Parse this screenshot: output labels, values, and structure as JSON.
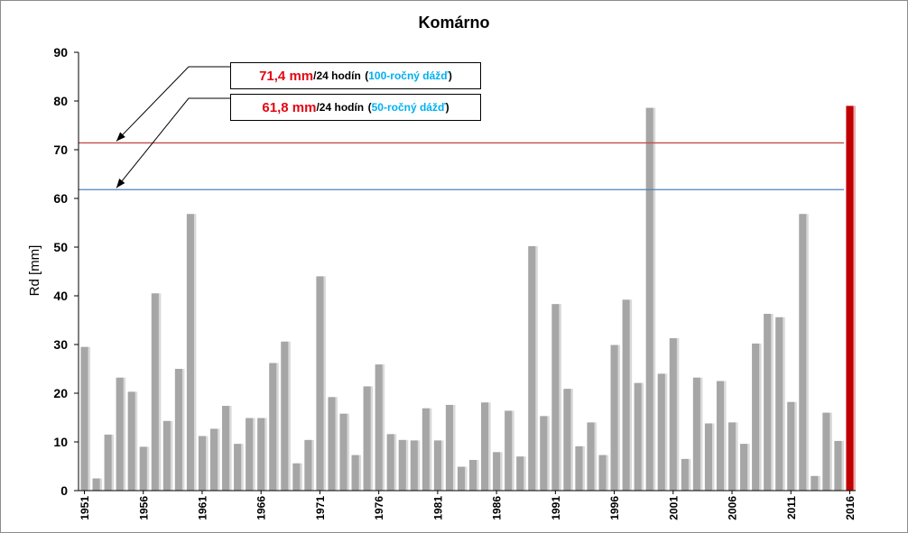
{
  "chart_data": {
    "type": "bar",
    "title": "Komárno",
    "ylabel": "Rd [mm]",
    "xlabel": "",
    "ylim": [
      0,
      90
    ],
    "yticks": [
      0,
      10,
      20,
      30,
      40,
      50,
      60,
      70,
      80,
      90
    ],
    "x_tick_labels": [
      "1951",
      "1956",
      "1961",
      "1966",
      "1971",
      "1976",
      "1981",
      "1986",
      "1991",
      "1996",
      "2001",
      "2006",
      "2011",
      "2016"
    ],
    "grid": false,
    "years": [
      1951,
      1952,
      1953,
      1954,
      1955,
      1956,
      1957,
      1958,
      1959,
      1960,
      1961,
      1962,
      1963,
      1964,
      1965,
      1966,
      1967,
      1968,
      1969,
      1970,
      1971,
      1972,
      1973,
      1974,
      1975,
      1976,
      1977,
      1978,
      1979,
      1980,
      1981,
      1982,
      1983,
      1984,
      1985,
      1986,
      1987,
      1988,
      1989,
      1990,
      1991,
      1992,
      1993,
      1994,
      1995,
      1996,
      1997,
      1998,
      1999,
      2000,
      2001,
      2002,
      2003,
      2004,
      2005,
      2006,
      2007,
      2008,
      2009,
      2010,
      2011,
      2012,
      2013,
      2014,
      2015,
      2016
    ],
    "values": [
      29.5,
      2.5,
      11.5,
      23.2,
      20.3,
      9.0,
      40.5,
      14.3,
      25.0,
      56.8,
      11.2,
      12.7,
      17.4,
      9.6,
      14.9,
      14.9,
      26.2,
      30.6,
      5.6,
      10.4,
      44.0,
      19.2,
      15.8,
      7.3,
      21.4,
      25.9,
      11.6,
      10.4,
      10.3,
      16.9,
      10.3,
      17.6,
      4.9,
      6.3,
      18.1,
      7.9,
      16.4,
      7.0,
      50.2,
      15.3,
      38.3,
      20.9,
      9.1,
      14.0,
      7.3,
      29.9,
      39.2,
      22.1,
      78.6,
      24.0,
      31.3,
      6.5,
      23.2,
      13.8,
      22.5,
      14.0,
      9.6,
      30.2,
      36.3,
      35.6,
      18.2,
      56.8,
      3.0,
      16.0,
      10.2,
      79.0
    ],
    "highlight": {
      "year": 2016,
      "value": 79.0,
      "color": "#c00000"
    },
    "bar_color": "#a6a6a6",
    "bar_shadow_color": "#d9d9d9",
    "reference_lines": [
      {
        "value": 71.4,
        "label_value": "71,4 mm",
        "label_unit": "/24 hodín",
        "label_paren_open": "(",
        "label_name": "100-ročný dážď",
        "label_paren_close": ")",
        "color": "#c0504d",
        "name_color": "#00b0f0",
        "value_color": "#e30613"
      },
      {
        "value": 61.8,
        "label_value": "61,8 mm",
        "label_unit": "/24 hodín",
        "label_paren_open": "(",
        "label_name": "50-ročný dážď",
        "label_paren_close": ")",
        "color": "#4f81bd",
        "name_color": "#00b0f0",
        "value_color": "#e30613"
      }
    ]
  }
}
